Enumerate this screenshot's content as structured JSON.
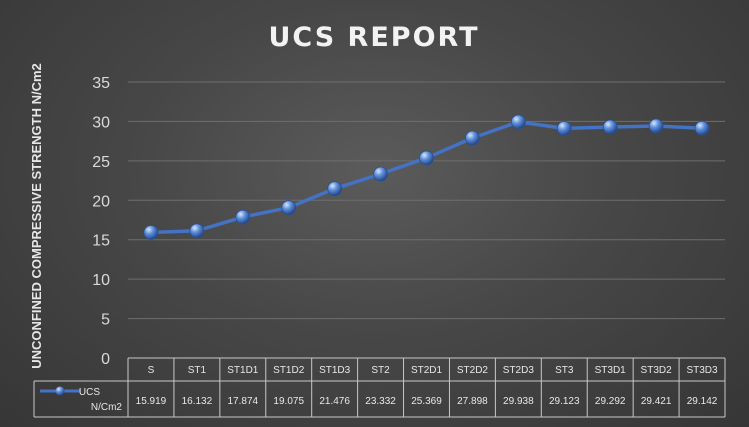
{
  "chart_data": {
    "type": "line",
    "title": "UCS REPORT",
    "xlabel": "",
    "ylabel": "UNCONFINED COMPRESSIVE STRENGTH N/Cm2",
    "ylim": [
      0,
      35
    ],
    "yticks": [
      0,
      5,
      10,
      15,
      20,
      25,
      30,
      35
    ],
    "grid": true,
    "legend": "data-table",
    "categories": [
      "S",
      "ST1",
      "ST1D1",
      "ST1D2",
      "ST1D3",
      "ST2",
      "ST2D1",
      "ST2D2",
      "ST2D3",
      "ST3",
      "ST3D1",
      "ST3D2",
      "ST3D3"
    ],
    "series": [
      {
        "name": "UCS N/Cm2",
        "values": [
          15.919,
          16.132,
          17.874,
          19.075,
          21.476,
          23.332,
          25.369,
          27.898,
          29.938,
          29.123,
          29.292,
          29.421,
          29.142
        ],
        "labels": [
          "15.919",
          "16.132",
          "17.874",
          "19.075",
          "21.476",
          "23.332",
          "25.369",
          "27.898",
          "29.938",
          "29.123",
          "29.292",
          "29.421",
          "29.142"
        ],
        "color": "#4472c4"
      }
    ]
  },
  "legend": {
    "line1": "UCS",
    "line2": "N/Cm2"
  },
  "colors": {
    "line": "#4472c4",
    "marker_light": "#9ab8ea",
    "marker_dark": "#2a4f93",
    "grid": "#6e6e6e",
    "table_border": "#c8c8c8"
  }
}
